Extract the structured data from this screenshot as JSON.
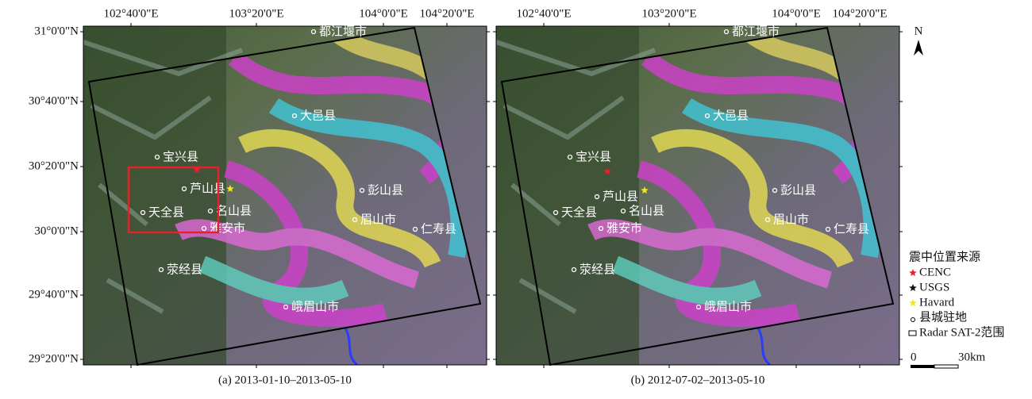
{
  "figure": {
    "lon_ticks": [
      "102°40'0\"E",
      "103°20'0\"E",
      "104°0'0\"E",
      "104°20'0\"E"
    ],
    "lat_ticks": [
      "31°0'0\"N",
      "30°40'0\"N",
      "30°20'0\"N",
      "30°0'0\"N",
      "29°40'0\"N",
      "29°20'0\"N"
    ],
    "cities": [
      "都江堰市",
      "大邑县",
      "宝兴县",
      "芦山县",
      "天全县",
      "名山县",
      "雅安市",
      "彭山县",
      "眉山市",
      "仁寿县",
      "荥经县",
      "峨眉山市"
    ],
    "panels": [
      {
        "caption": "(a) 2013-01-10–2013-05-10"
      },
      {
        "caption": "(b) 2012-07-02–2013-05-10"
      }
    ],
    "north": "N",
    "legend": {
      "title": "震中位置来源",
      "items": [
        {
          "label": "CENC",
          "color": "#e8202a"
        },
        {
          "label": "USGS",
          "color": "#111111"
        },
        {
          "label": "Havard",
          "color": "#f2e61c"
        },
        {
          "label": "县城驻地"
        },
        {
          "label": "Radar SAT-2范围"
        }
      ]
    },
    "scale": {
      "start": "0",
      "end": "30km"
    }
  }
}
